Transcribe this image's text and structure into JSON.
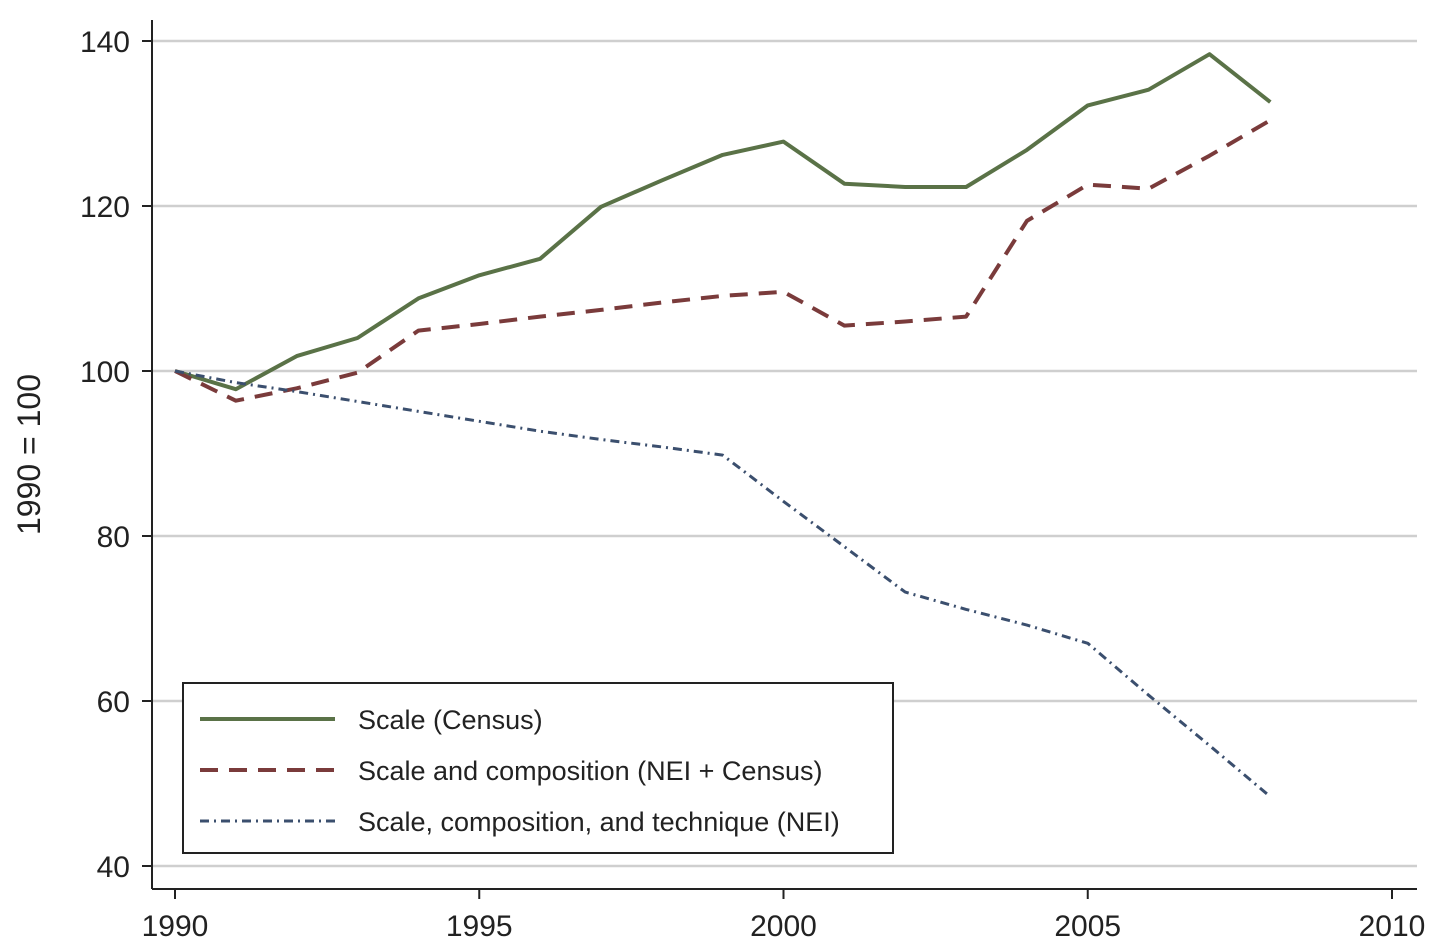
{
  "chart_data": {
    "type": "line",
    "title": "",
    "xlabel": "",
    "ylabel": "1990 = 100",
    "xlim": [
      1990,
      2010
    ],
    "ylim": [
      40,
      140
    ],
    "xticks": [
      1990,
      1995,
      2000,
      2005,
      2010
    ],
    "yticks": [
      40,
      60,
      80,
      100,
      120,
      140
    ],
    "grid": "horizontal",
    "legend_position": "bottom-left",
    "x": [
      1990,
      1991,
      1992,
      1993,
      1994,
      1995,
      1996,
      1997,
      1998,
      1999,
      2000,
      2001,
      2002,
      2003,
      2004,
      2005,
      2006,
      2007,
      2008
    ],
    "series": [
      {
        "name": "Scale (Census)",
        "color": "#5a7247",
        "style": "solid",
        "values": [
          100,
          97.8,
          101.8,
          104,
          108.8,
          111.6,
          113.6,
          119.9,
          123.1,
          126.2,
          127.8,
          122.7,
          122.3,
          122.3,
          126.8,
          132.2,
          134.1,
          138.4,
          132.6
        ]
      },
      {
        "name": "Scale and composition (NEI + Census)",
        "color": "#7a3b3b",
        "style": "dashed",
        "values": [
          100,
          96.4,
          97.9,
          99.8,
          104.9,
          105.7,
          106.6,
          107.4,
          108.3,
          109.1,
          109.6,
          105.5,
          106,
          106.6,
          118.2,
          122.6,
          122.1,
          126.1,
          130.4
        ]
      },
      {
        "name": "Scale, composition, and technique (NEI)",
        "color": "#3b4f6e",
        "style": "dashdot",
        "values": [
          100,
          98.6,
          97.5,
          96.3,
          95.1,
          93.9,
          92.7,
          91.7,
          90.8,
          89.8,
          84.2,
          78.7,
          73.2,
          71.1,
          69.2,
          67,
          60.7,
          54.6,
          48.4
        ]
      }
    ]
  }
}
